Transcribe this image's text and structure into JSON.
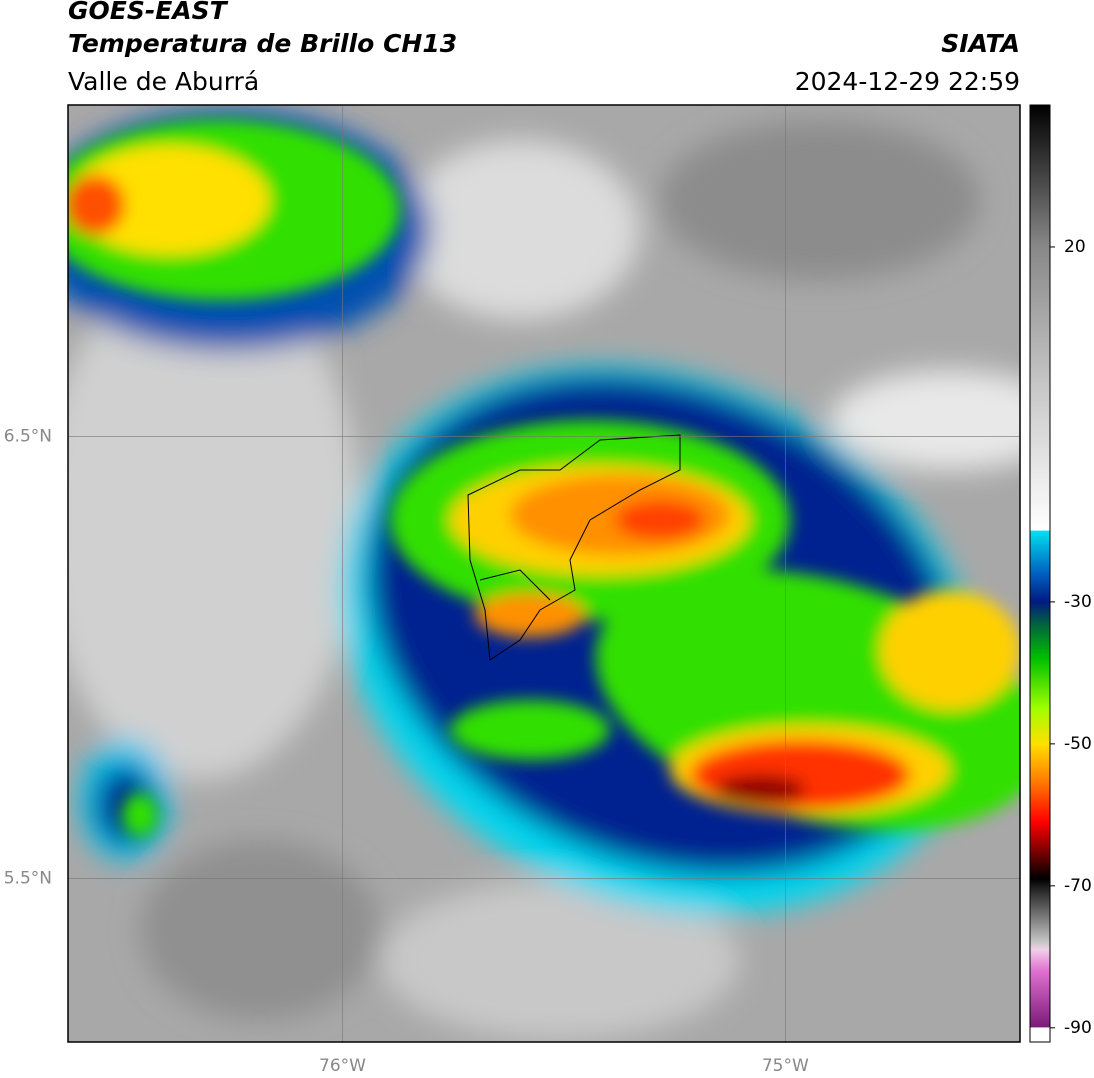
{
  "chart_data": {
    "type": "map",
    "title": "GOES-EAST",
    "subtitle": "Temperatura de Brillo CH13",
    "region": "Valle de Aburrá",
    "source": "SIATA",
    "timestamp": "2024-12-29 22:59",
    "xlim": [
      -76.62,
      -74.47
    ],
    "ylim": [
      5.13,
      7.25
    ],
    "xticks": [
      {
        "value": -76,
        "label": "76°W"
      },
      {
        "value": -75,
        "label": "75°W"
      }
    ],
    "yticks": [
      {
        "value": 6.5,
        "label": "6.5°N"
      },
      {
        "value": 5.5,
        "label": "5.5°N"
      }
    ],
    "grid": true,
    "colorbar": {
      "lim": [
        -92,
        40
      ],
      "ticks": [
        20,
        -30,
        -50,
        -70,
        -90
      ],
      "colorscale": [
        [
          -92,
          "#ffffff"
        ],
        [
          -90,
          "#ffffff"
        ],
        [
          -89.9,
          "#7a1a7a"
        ],
        [
          -82,
          "#e070d0"
        ],
        [
          -79,
          "#f0d0e8"
        ],
        [
          -78,
          "#c8c8c8"
        ],
        [
          -71,
          "#303030"
        ],
        [
          -69,
          "#000000"
        ],
        [
          -66,
          "#600000"
        ],
        [
          -61,
          "#ff0000"
        ],
        [
          -55,
          "#ff8000"
        ],
        [
          -50,
          "#ffe000"
        ],
        [
          -45,
          "#a0ff00"
        ],
        [
          -38,
          "#00c000"
        ],
        [
          -33,
          "#006040"
        ],
        [
          -30,
          "#001a80"
        ],
        [
          -26,
          "#0060c0"
        ],
        [
          -20,
          "#00e0f0"
        ],
        [
          -19.9,
          "#ffffff"
        ],
        [
          0,
          "#c8c8c8"
        ],
        [
          20,
          "#888888"
        ],
        [
          40,
          "#000000"
        ]
      ]
    }
  }
}
